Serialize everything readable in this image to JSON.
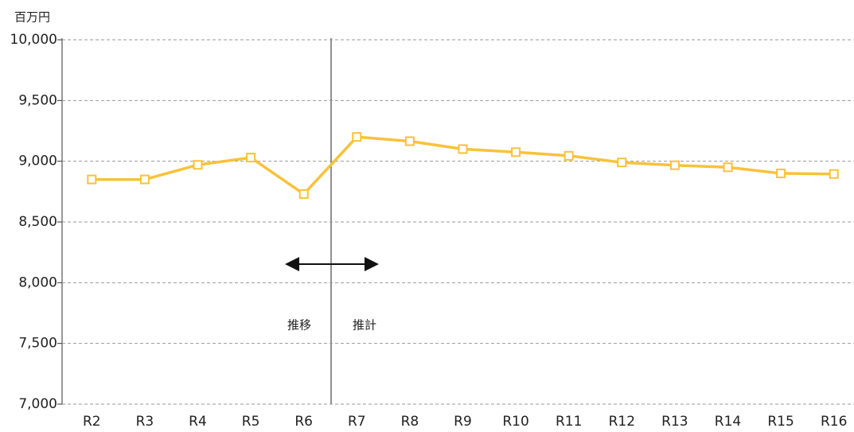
{
  "chart_data": {
    "type": "line",
    "unit_label": "百万円",
    "categories": [
      "R2",
      "R3",
      "R4",
      "R5",
      "R6",
      "R7",
      "R8",
      "R9",
      "R10",
      "R11",
      "R12",
      "R13",
      "R14",
      "R15",
      "R16"
    ],
    "series": [
      {
        "color": "#f8c23a",
        "values": [
          8850,
          8850,
          8970,
          9030,
          8730,
          9200,
          9165,
          9100,
          9075,
          9045,
          8990,
          8967,
          8950,
          8900,
          8895
        ]
      }
    ],
    "ylim": [
      7000,
      10000
    ],
    "yticks": [
      {
        "value": 7000,
        "label": "7,000"
      },
      {
        "value": 7500,
        "label": "7,500"
      },
      {
        "value": 8000,
        "label": "8,000"
      },
      {
        "value": 8500,
        "label": "8,500"
      },
      {
        "value": 9000,
        "label": "9,000"
      },
      {
        "value": 9500,
        "label": "9,500"
      },
      {
        "value": 10000,
        "label": "10,000"
      }
    ],
    "grid": true,
    "annotations": [
      "推移",
      "推計"
    ]
  }
}
